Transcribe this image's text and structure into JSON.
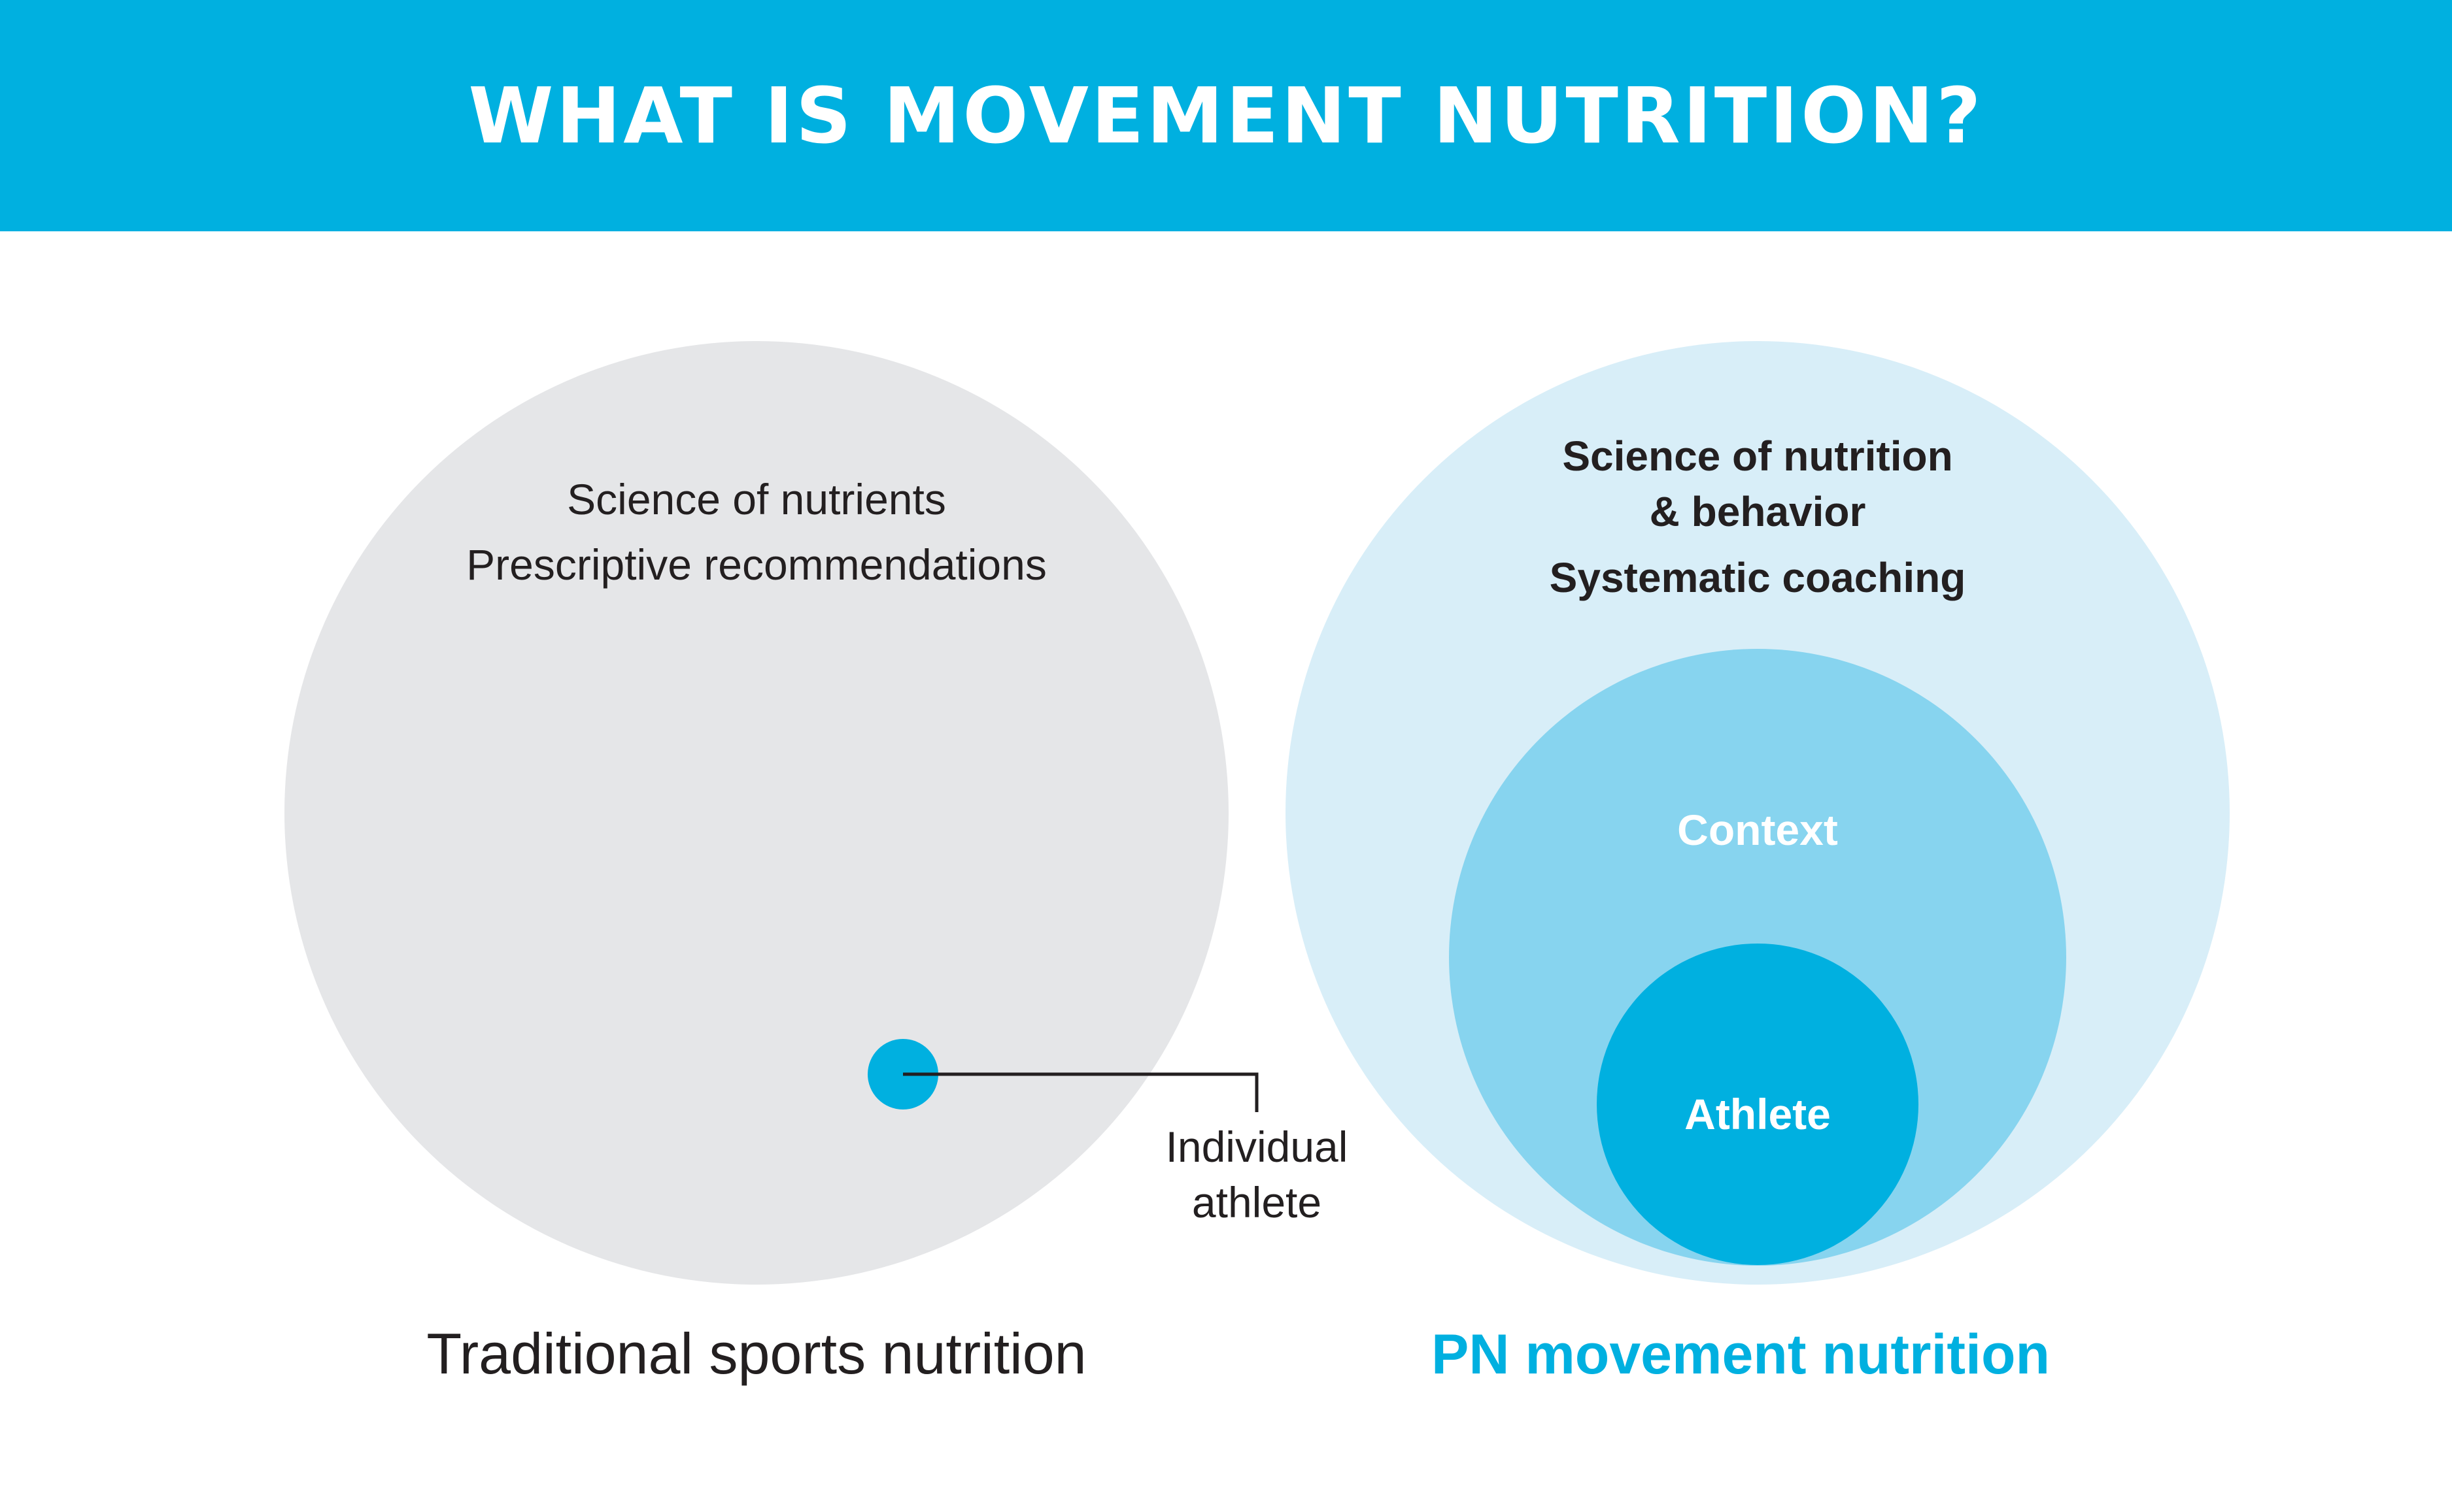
{
  "header": {
    "title": "WHAT IS MOVEMENT NUTRITION?"
  },
  "colors": {
    "header_bar": "#00b0e0",
    "traditional_circle": "#e5e6e8",
    "outer_circle": "#d8eef8",
    "context_circle": "#87d4ef",
    "athlete_circle": "#00b0e0",
    "dark_text": "#231f20",
    "accent_text": "#00b0e0"
  },
  "left_diagram": {
    "lines": [
      "Science of nutrients",
      "Prescriptive recommendations"
    ],
    "callout_lines": [
      "Individual",
      "athlete"
    ],
    "caption": "Traditional sports nutrition"
  },
  "right_diagram": {
    "outer_lines": [
      "Science of nutrition",
      "& behavior",
      "Systematic coaching"
    ],
    "context_label": "Context",
    "athlete_label": "Athlete",
    "caption": "PN movement nutrition"
  }
}
